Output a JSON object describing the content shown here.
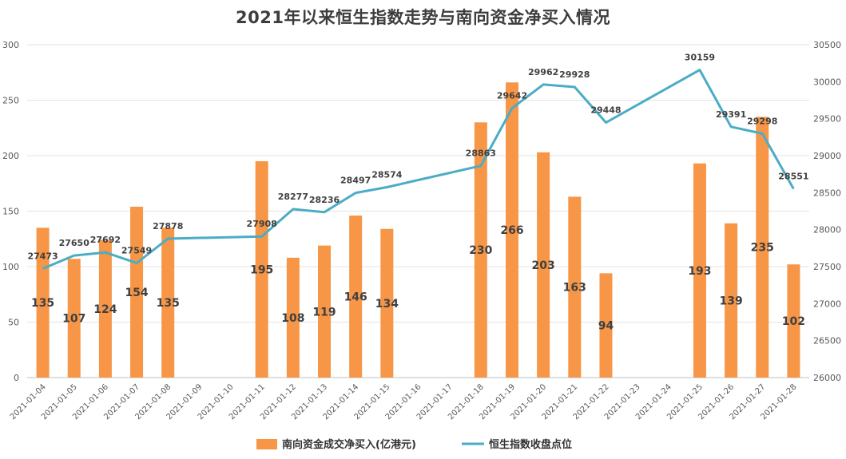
{
  "chart_data": {
    "type": "bar",
    "title": "2021年以来恒生指数走势与南向资金净买入情况",
    "categories": [
      "2021-01-04",
      "2021-01-05",
      "2021-01-06",
      "2021-01-07",
      "2021-01-08",
      "2021-01-09",
      "2021-01-10",
      "2021-01-11",
      "2021-01-12",
      "2021-01-13",
      "2021-01-14",
      "2021-01-15",
      "2021-01-16",
      "2021-01-17",
      "2021-01-18",
      "2021-01-19",
      "2021-01-20",
      "2021-01-21",
      "2021-01-22",
      "2021-01-23",
      "2021-01-24",
      "2021-01-25",
      "2021-01-26",
      "2021-01-27",
      "2021-01-28"
    ],
    "series": [
      {
        "name": "南向资金成交净买入(亿港元)",
        "type": "bar",
        "axis": "left",
        "color": "#F79646",
        "values": [
          135,
          107,
          124,
          154,
          135,
          null,
          null,
          195,
          108,
          119,
          146,
          134,
          null,
          null,
          230,
          266,
          203,
          163,
          94,
          null,
          null,
          193,
          139,
          235,
          102
        ]
      },
      {
        "name": "恒生指数收盘点位",
        "type": "line",
        "axis": "right",
        "color": "#4BACC6",
        "values": [
          27473,
          27650,
          27692,
          27549,
          27878,
          null,
          null,
          27908,
          28277,
          28236,
          28497,
          28574,
          null,
          null,
          28863,
          29642,
          29962,
          29928,
          29448,
          null,
          null,
          30159,
          29391,
          29298,
          28551
        ]
      }
    ],
    "y_left": {
      "min": 0,
      "max": 300,
      "ticks": [
        0,
        50,
        100,
        150,
        200,
        250,
        300
      ]
    },
    "y_right": {
      "min": 26000,
      "max": 30500,
      "ticks": [
        26000,
        26500,
        27000,
        27500,
        28000,
        28500,
        29000,
        29500,
        30000,
        30500
      ]
    },
    "grid": true,
    "legend_position": "bottom"
  }
}
